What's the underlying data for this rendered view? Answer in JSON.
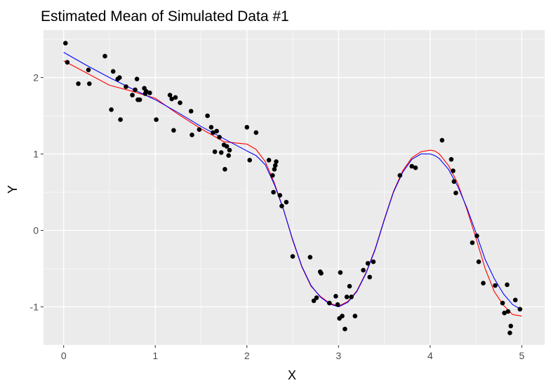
{
  "chart_data": {
    "type": "scatter",
    "title": "Estimated Mean of Simulated Data #1",
    "xlabel": "X",
    "ylabel": "Y",
    "xlim": [
      -0.22,
      5.25
    ],
    "ylim": [
      -1.5,
      2.62
    ],
    "x_ticks": [
      0,
      1,
      2,
      3,
      4,
      5
    ],
    "x_tick_labels": [
      "0",
      "1",
      "2",
      "3",
      "4",
      "5"
    ],
    "y_ticks": [
      -1,
      0,
      1,
      2
    ],
    "y_tick_labels": [
      "-1",
      "0",
      "1",
      "2"
    ],
    "grid": true,
    "background": "#ebebeb",
    "colors": {
      "points": "#000000",
      "red_curve": "#ff0000",
      "blue_curve": "#0000ff",
      "grid": "#ffffff"
    },
    "points": {
      "x": [
        0.02,
        0.04,
        0.16,
        0.27,
        0.28,
        0.45,
        0.52,
        0.54,
        0.59,
        0.61,
        0.62,
        0.68,
        0.75,
        0.78,
        0.8,
        0.81,
        0.83,
        0.88,
        0.89,
        0.9,
        0.94,
        1.01,
        1.16,
        1.18,
        1.2,
        1.22,
        1.27,
        1.39,
        1.4,
        1.48,
        1.57,
        1.61,
        1.63,
        1.65,
        1.67,
        1.7,
        1.72,
        1.75,
        1.76,
        1.78,
        1.8,
        1.81,
        2.0,
        2.03,
        2.1,
        2.24,
        2.28,
        2.29,
        2.3,
        2.31,
        2.32,
        2.36,
        2.38,
        2.43,
        2.5,
        2.69,
        2.73,
        2.76,
        2.8,
        2.81,
        2.9,
        2.97,
        2.99,
        3.01,
        3.02,
        3.04,
        3.07,
        3.09,
        3.12,
        3.14,
        3.18,
        3.27,
        3.32,
        3.34,
        3.38,
        3.67,
        3.8,
        3.84,
        4.13,
        4.23,
        4.25,
        4.26,
        4.28,
        4.46,
        4.51,
        4.53,
        4.58,
        4.71,
        4.79,
        4.81,
        4.84,
        4.85,
        4.87,
        4.88,
        4.93,
        4.98
      ],
      "y": [
        2.45,
        2.2,
        1.92,
        2.1,
        1.92,
        2.28,
        1.58,
        2.08,
        1.98,
        2.0,
        1.45,
        1.88,
        1.77,
        1.84,
        1.98,
        1.71,
        1.71,
        1.86,
        1.79,
        1.82,
        1.8,
        1.45,
        1.77,
        1.72,
        1.31,
        1.74,
        1.67,
        1.56,
        1.25,
        1.32,
        1.5,
        1.35,
        1.28,
        1.03,
        1.3,
        1.22,
        1.02,
        1.12,
        0.8,
        1.1,
        0.98,
        1.05,
        1.35,
        0.92,
        1.28,
        0.92,
        0.72,
        0.5,
        0.8,
        0.85,
        0.9,
        0.46,
        0.32,
        0.37,
        -0.34,
        -0.35,
        -0.92,
        -0.88,
        -0.54,
        -0.56,
        -0.95,
        -0.86,
        -0.97,
        -1.15,
        -0.55,
        -1.12,
        -1.29,
        -0.87,
        -0.73,
        -0.87,
        -1.12,
        -0.52,
        -0.43,
        -0.61,
        -0.41,
        0.72,
        0.84,
        0.82,
        1.18,
        0.93,
        0.78,
        0.64,
        0.49,
        -0.16,
        -0.07,
        -0.41,
        -0.69,
        -0.72,
        -0.95,
        -1.08,
        -0.71,
        -1.06,
        -1.34,
        -1.25,
        -0.91,
        -1.03
      ]
    },
    "series": [
      {
        "type": "line",
        "color": "#ff0000",
        "x": [
          0.0,
          0.25,
          0.5,
          0.75,
          1.0,
          1.25,
          1.5,
          1.75,
          2.0,
          2.1,
          2.2,
          2.3,
          2.4,
          2.5,
          2.6,
          2.7,
          2.8,
          2.9,
          3.0,
          3.1,
          3.2,
          3.3,
          3.4,
          3.5,
          3.6,
          3.7,
          3.8,
          3.9,
          4.0,
          4.05,
          4.1,
          4.2,
          4.3,
          4.4,
          4.5,
          4.6,
          4.7,
          4.8,
          4.9,
          5.0
        ],
        "y": [
          2.22,
          2.06,
          1.9,
          1.82,
          1.73,
          1.52,
          1.33,
          1.16,
          1.13,
          1.06,
          0.9,
          0.62,
          0.27,
          -0.13,
          -0.48,
          -0.73,
          -0.86,
          -0.95,
          -0.99,
          -0.93,
          -0.79,
          -0.55,
          -0.24,
          0.15,
          0.51,
          0.78,
          0.95,
          1.03,
          1.05,
          1.04,
          1.0,
          0.85,
          0.62,
          0.28,
          -0.1,
          -0.5,
          -0.8,
          -0.98,
          -1.1,
          -1.12
        ]
      },
      {
        "type": "line",
        "color": "#0000ff",
        "x": [
          0.0,
          0.25,
          0.5,
          0.75,
          1.0,
          1.25,
          1.5,
          1.75,
          2.0,
          2.1,
          2.2,
          2.3,
          2.4,
          2.5,
          2.6,
          2.7,
          2.8,
          2.9,
          3.0,
          3.1,
          3.2,
          3.3,
          3.4,
          3.5,
          3.6,
          3.7,
          3.8,
          3.9,
          4.0,
          4.05,
          4.1,
          4.2,
          4.3,
          4.4,
          4.5,
          4.6,
          4.7,
          4.8,
          4.9,
          5.0
        ],
        "y": [
          2.33,
          2.16,
          2.0,
          1.85,
          1.71,
          1.54,
          1.36,
          1.2,
          1.04,
          0.98,
          0.86,
          0.6,
          0.27,
          -0.12,
          -0.47,
          -0.72,
          -0.87,
          -0.96,
          -1.0,
          -0.94,
          -0.8,
          -0.56,
          -0.25,
          0.14,
          0.5,
          0.76,
          0.93,
          1.0,
          1.0,
          0.98,
          0.94,
          0.8,
          0.58,
          0.3,
          -0.03,
          -0.38,
          -0.63,
          -0.83,
          -0.97,
          -1.04
        ]
      }
    ]
  }
}
